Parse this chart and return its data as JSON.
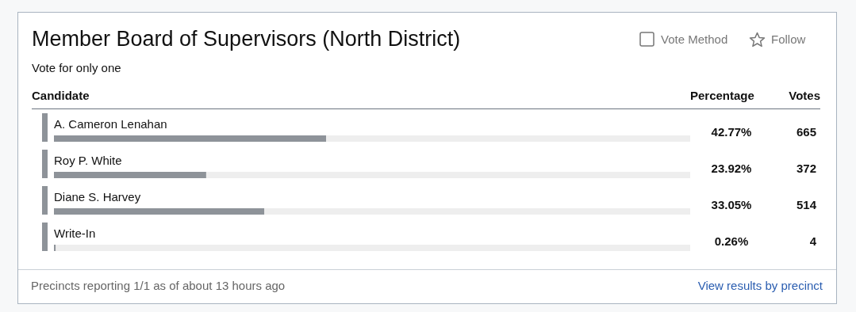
{
  "chart_data": {
    "type": "bar",
    "orientation": "horizontal",
    "title": "Member Board of Supervisors (North District)",
    "subtitle": "Vote for only one",
    "categories": [
      "A. Cameron Lenahan",
      "Roy P. White",
      "Diane S. Harvey",
      "Write-In"
    ],
    "values": [
      42.77,
      23.92,
      33.05,
      0.26
    ],
    "value_labels": [
      "42.77%",
      "23.92%",
      "33.05%",
      "0.26%"
    ],
    "color": "#8e9399",
    "xlim": [
      0,
      100
    ],
    "annotations": [
      "Candidate",
      "Percentage",
      "Votes",
      "Vote Method",
      "Follow",
      "Precincts reporting 1/1 as of about 13 hours ago",
      "View results by precinct",
      "665",
      "372",
      "514",
      "4"
    ]
  }
}
